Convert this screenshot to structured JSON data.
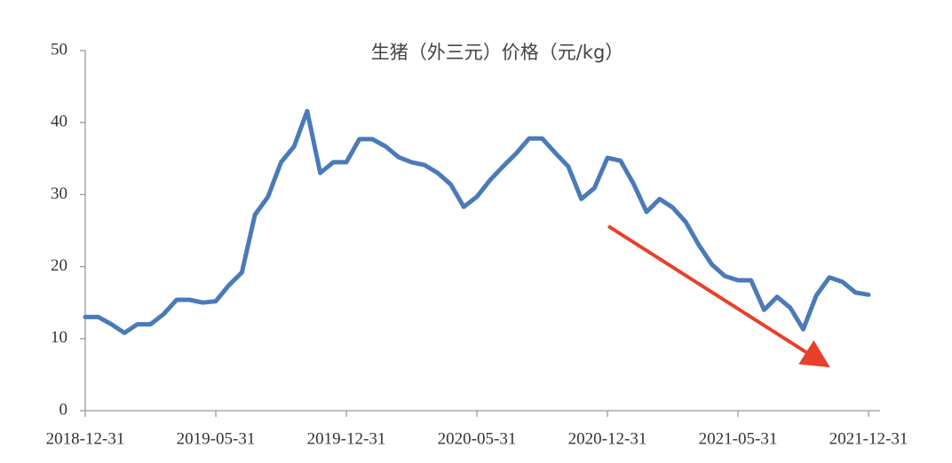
{
  "chart_data": {
    "type": "line",
    "title": "生猪（外三元）价格（元/kg）",
    "categories": [
      "2018-12-31",
      null,
      null,
      null,
      null,
      null,
      null,
      null,
      null,
      null,
      "2019-05-31",
      null,
      null,
      null,
      null,
      null,
      null,
      null,
      null,
      null,
      "2019-12-31",
      null,
      null,
      null,
      null,
      null,
      null,
      null,
      null,
      null,
      "2020-05-31",
      null,
      null,
      null,
      null,
      null,
      null,
      null,
      null,
      null,
      "2020-12-31",
      null,
      null,
      null,
      null,
      null,
      null,
      null,
      null,
      null,
      "2021-05-31",
      null,
      null,
      null,
      null,
      null,
      null,
      null,
      null,
      null,
      "2021-12-31"
    ],
    "values": [
      13.0,
      13.0,
      12.0,
      10.8,
      12.0,
      12.0,
      13.4,
      15.4,
      15.4,
      15.0,
      15.2,
      17.4,
      19.2,
      27.2,
      29.7,
      34.5,
      36.7,
      41.6,
      33.0,
      34.5,
      34.5,
      37.7,
      37.7,
      36.7,
      35.2,
      34.5,
      34.1,
      33.0,
      31.4,
      28.3,
      29.7,
      32.0,
      33.9,
      35.7,
      37.8,
      37.8,
      35.8,
      33.9,
      29.4,
      30.9,
      35.1,
      34.7,
      31.5,
      27.6,
      29.4,
      28.2,
      26.2,
      23.0,
      20.3,
      18.7,
      18.1,
      18.1,
      14.0,
      15.8,
      14.3,
      11.3,
      16.0,
      18.5,
      17.9,
      16.4,
      16.1
    ],
    "color": "#4a7ab8",
    "ylim": [
      0,
      50
    ],
    "yticks": [
      0,
      10,
      20,
      30,
      40,
      50
    ]
  }
}
